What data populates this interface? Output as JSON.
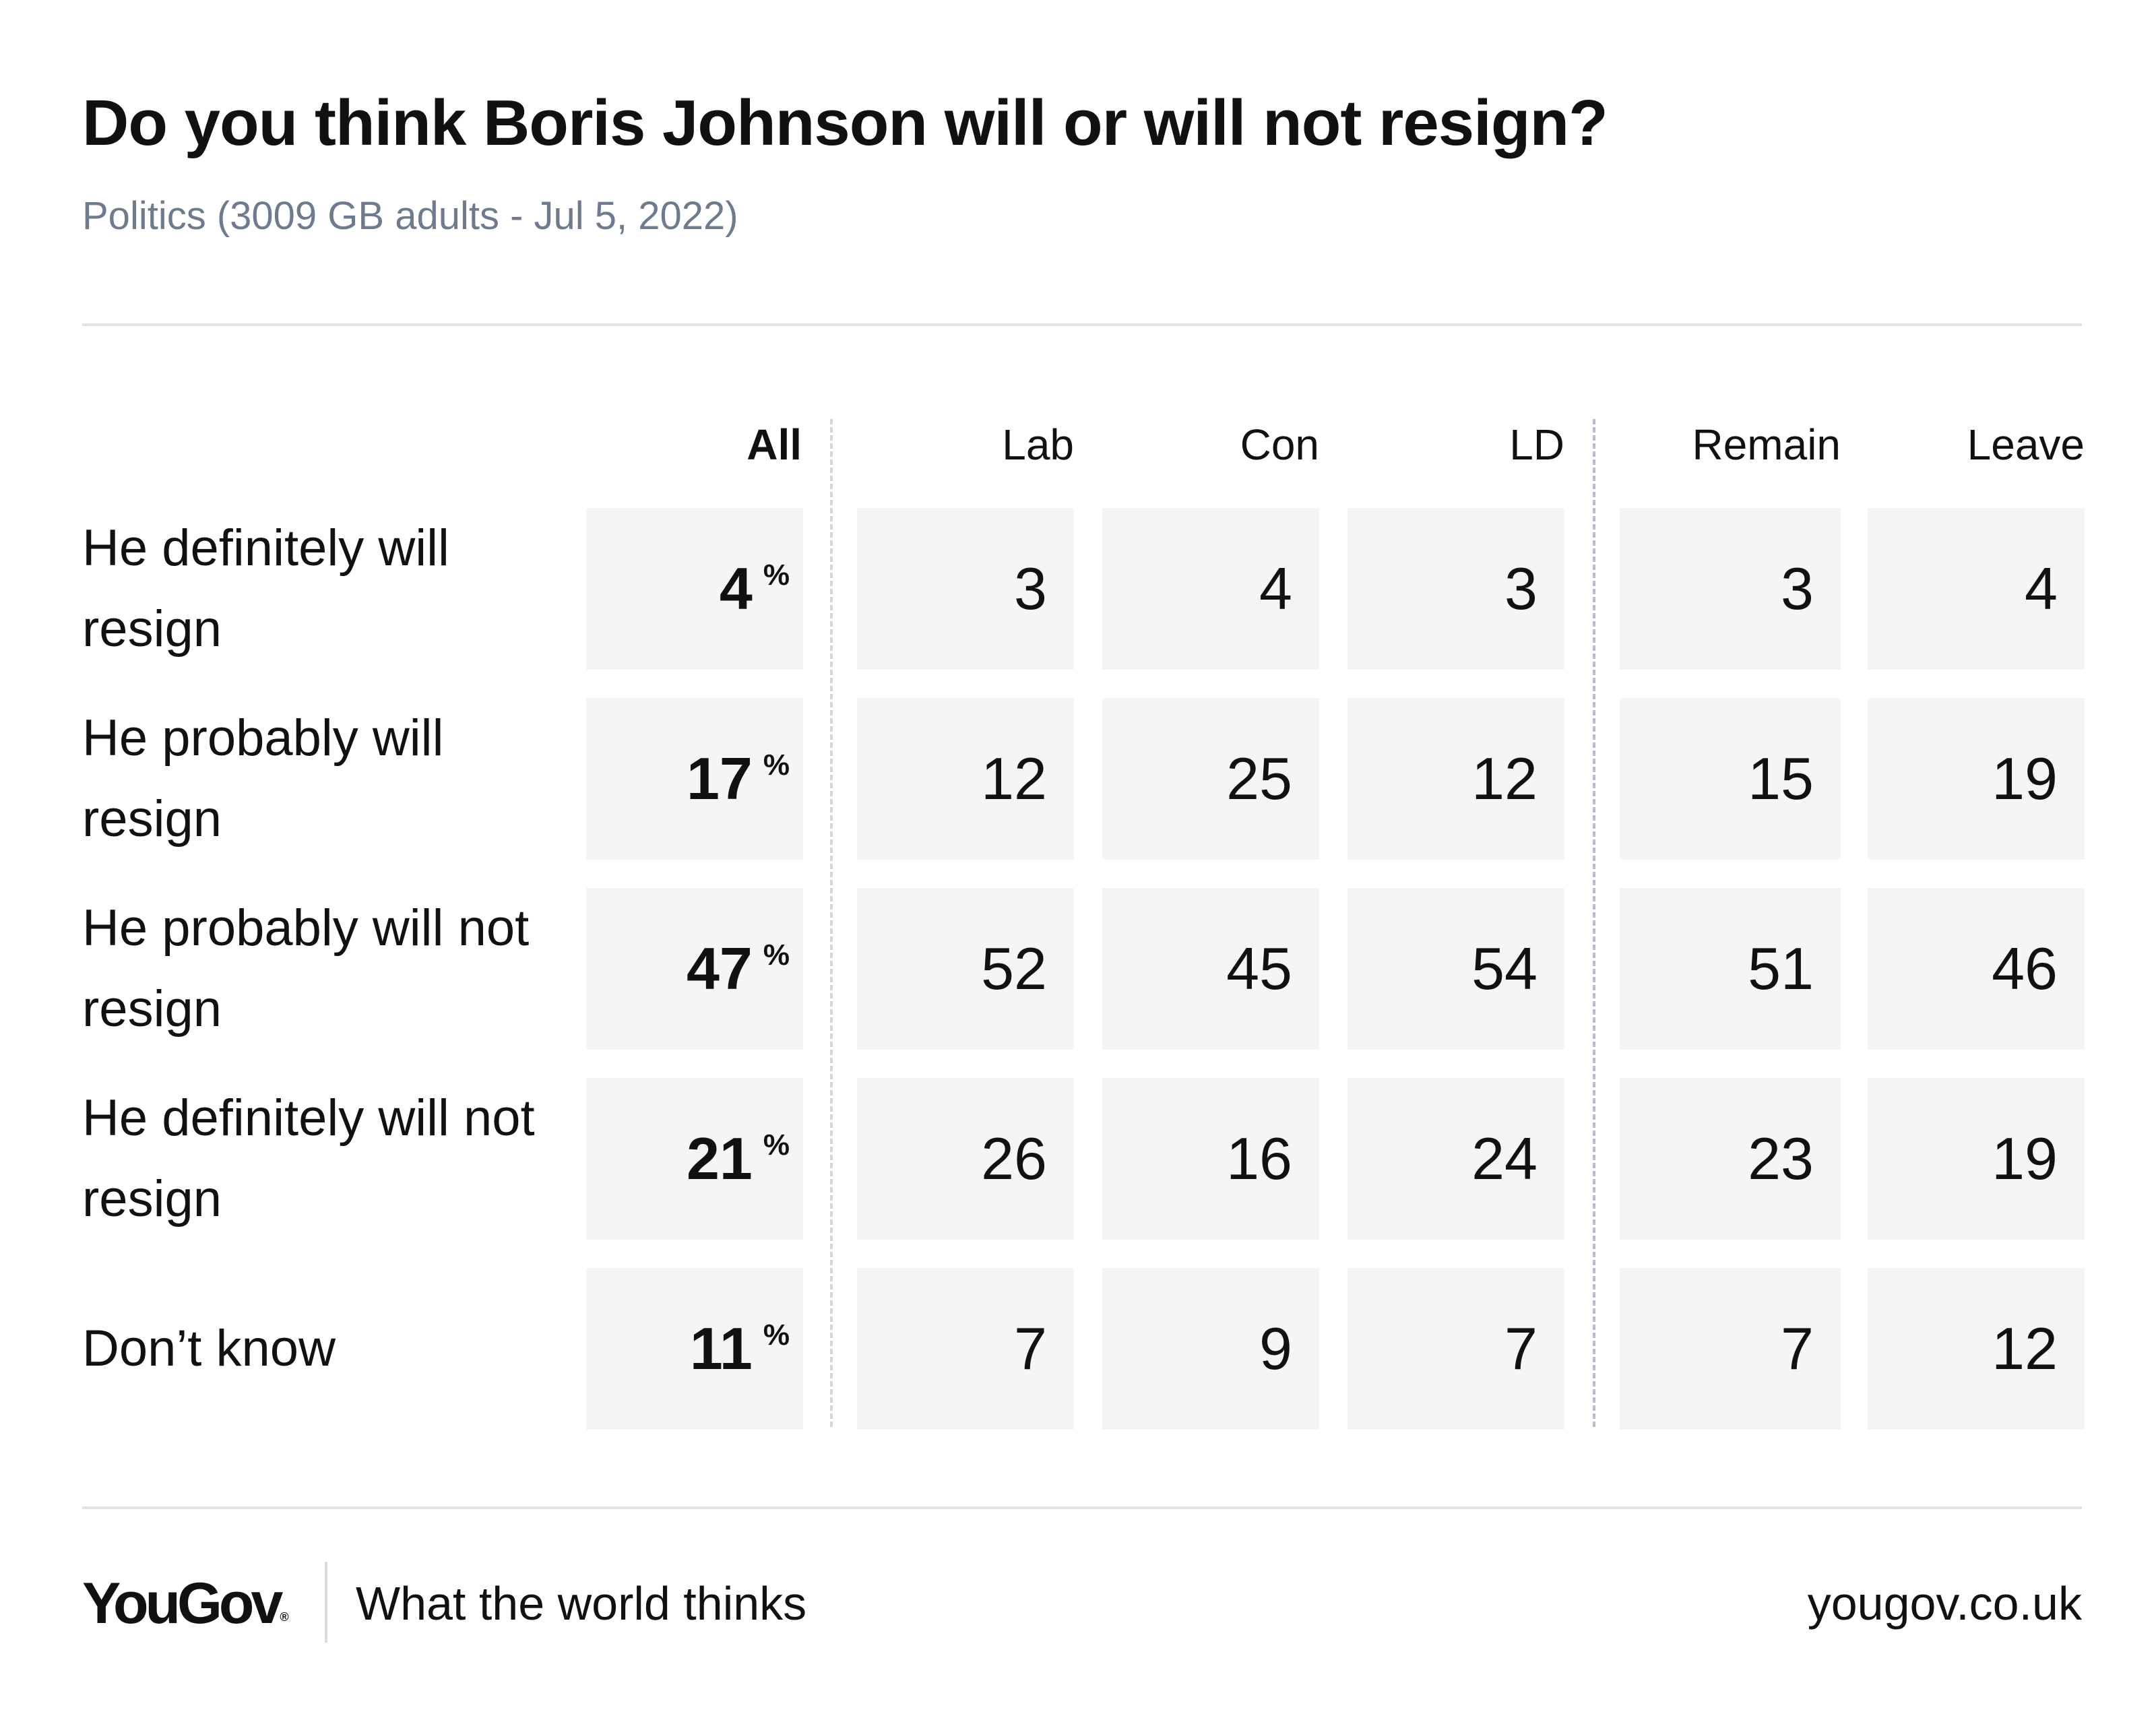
{
  "header": {
    "title": "Do you think Boris Johnson will or will not resign?",
    "subtitle": "Politics (3009 GB adults - Jul 5, 2022)"
  },
  "chart_data": {
    "type": "table",
    "title": "Do you think Boris Johnson will or will not resign?",
    "subtitle": "Politics (3009 GB adults - Jul 5, 2022)",
    "columns": [
      "All",
      "Lab",
      "Con",
      "LD",
      "Remain",
      "Leave"
    ],
    "percent_sign": "%",
    "rows": [
      {
        "label": "He definitely will resign",
        "values": [
          "4",
          "3",
          "4",
          "3",
          "3",
          "4"
        ]
      },
      {
        "label": "He probably will resign",
        "values": [
          "17",
          "12",
          "25",
          "12",
          "15",
          "19"
        ]
      },
      {
        "label": "He probably will not resign",
        "values": [
          "47",
          "52",
          "45",
          "54",
          "51",
          "46"
        ]
      },
      {
        "label": "He definitely will not resign",
        "values": [
          "21",
          "26",
          "16",
          "24",
          "23",
          "19"
        ]
      },
      {
        "label": "Don’t know",
        "values": [
          "11",
          "7",
          "9",
          "7",
          "7",
          "12"
        ]
      }
    ]
  },
  "footer": {
    "logo": "YouGov",
    "logo_mark": "®",
    "tagline": "What the world thinks",
    "site": "yougov.co.uk"
  }
}
